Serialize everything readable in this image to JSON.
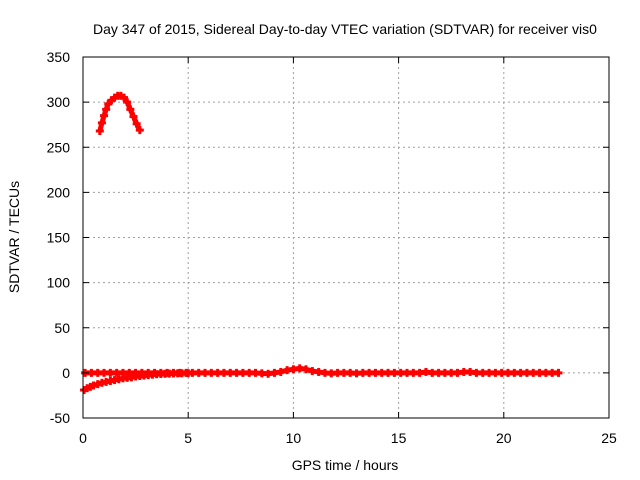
{
  "chart_data": {
    "type": "scatter",
    "title": "Day 347 of 2015, Sidereal Day-to-day VTEC variation (SDTVAR) for receiver vis0",
    "xlabel": "GPS time / hours",
    "ylabel": "SDTVAR / TECUs",
    "xlim": [
      0,
      25
    ],
    "ylim": [
      -50,
      350
    ],
    "xticks": [
      0,
      5,
      10,
      15,
      20,
      25
    ],
    "yticks": [
      -50,
      0,
      50,
      100,
      150,
      200,
      250,
      300,
      350
    ],
    "grid": true,
    "series_color": "#ff0000",
    "series": [
      {
        "points": [
          [
            0.8,
            268
          ],
          [
            0.9,
            277
          ],
          [
            1.0,
            285
          ],
          [
            1.1,
            292
          ],
          [
            1.2,
            298
          ],
          [
            1.35,
            302
          ],
          [
            1.5,
            305
          ],
          [
            1.65,
            307
          ],
          [
            1.8,
            307
          ],
          [
            1.95,
            305
          ],
          [
            2.1,
            300
          ],
          [
            2.25,
            292
          ],
          [
            2.4,
            284
          ],
          [
            2.55,
            276
          ],
          [
            2.7,
            269
          ]
        ]
      },
      {
        "points": [
          [
            0.05,
            -19
          ],
          [
            0.2,
            -17
          ],
          [
            0.35,
            -15.5
          ],
          [
            0.5,
            -14
          ],
          [
            0.7,
            -12.5
          ],
          [
            0.9,
            -11
          ],
          [
            1.1,
            -10
          ],
          [
            1.3,
            -9
          ],
          [
            1.5,
            -8
          ],
          [
            1.7,
            -7
          ],
          [
            1.9,
            -6
          ],
          [
            2.1,
            -5.5
          ],
          [
            2.3,
            -5
          ],
          [
            2.5,
            -4
          ],
          [
            2.7,
            -3.5
          ],
          [
            2.9,
            -3
          ],
          [
            3.1,
            -2.5
          ],
          [
            3.3,
            -2
          ],
          [
            3.5,
            -1.5
          ],
          [
            3.7,
            -1.2
          ],
          [
            3.9,
            -1
          ],
          [
            4.1,
            -0.8
          ],
          [
            4.3,
            -0.6
          ],
          [
            4.5,
            -0.5
          ],
          [
            4.7,
            -0.4
          ],
          [
            5.0,
            -0.3
          ]
        ]
      },
      {
        "points": [
          [
            0.1,
            0
          ],
          [
            0.4,
            0
          ],
          [
            0.7,
            0
          ],
          [
            1.0,
            0
          ],
          [
            1.3,
            0
          ],
          [
            1.6,
            0
          ],
          [
            1.9,
            0
          ],
          [
            2.2,
            0
          ],
          [
            2.5,
            0
          ],
          [
            2.8,
            0
          ],
          [
            3.1,
            0
          ],
          [
            3.4,
            0
          ],
          [
            3.7,
            0
          ],
          [
            4.0,
            0
          ],
          [
            4.3,
            0
          ],
          [
            4.6,
            0
          ],
          [
            4.9,
            0
          ],
          [
            5.2,
            0
          ],
          [
            5.5,
            0
          ],
          [
            5.8,
            0
          ],
          [
            6.1,
            0
          ],
          [
            6.4,
            0
          ],
          [
            6.7,
            0
          ],
          [
            7.0,
            0
          ],
          [
            7.3,
            0
          ],
          [
            7.6,
            0
          ],
          [
            7.9,
            0
          ],
          [
            8.2,
            0
          ],
          [
            8.5,
            -0.5
          ],
          [
            8.8,
            -1
          ],
          [
            9.1,
            0
          ],
          [
            9.4,
            1
          ],
          [
            9.7,
            3
          ],
          [
            10.0,
            4
          ],
          [
            10.3,
            5
          ],
          [
            10.6,
            4
          ],
          [
            10.9,
            2
          ],
          [
            11.2,
            1
          ],
          [
            11.5,
            0
          ],
          [
            11.8,
            -0.5
          ],
          [
            12.1,
            0
          ],
          [
            12.4,
            0
          ],
          [
            12.7,
            0
          ],
          [
            13.0,
            -0.5
          ],
          [
            13.3,
            0
          ],
          [
            13.6,
            0
          ],
          [
            13.9,
            0
          ],
          [
            14.2,
            0
          ],
          [
            14.5,
            0
          ],
          [
            14.8,
            0
          ],
          [
            15.1,
            0
          ],
          [
            15.4,
            0
          ],
          [
            15.7,
            0
          ],
          [
            16.0,
            0
          ],
          [
            16.3,
            1
          ],
          [
            16.6,
            0
          ],
          [
            16.9,
            0
          ],
          [
            17.2,
            0
          ],
          [
            17.5,
            0
          ],
          [
            17.8,
            0
          ],
          [
            18.1,
            1
          ],
          [
            18.4,
            1
          ],
          [
            18.7,
            0
          ],
          [
            19.0,
            0
          ],
          [
            19.3,
            0
          ],
          [
            19.6,
            0
          ],
          [
            19.9,
            0
          ],
          [
            20.2,
            0
          ],
          [
            20.5,
            0
          ],
          [
            20.8,
            0
          ],
          [
            21.1,
            0
          ],
          [
            21.4,
            0
          ],
          [
            21.7,
            0
          ],
          [
            22.0,
            0
          ],
          [
            22.3,
            0
          ],
          [
            22.6,
            0
          ]
        ]
      }
    ]
  }
}
